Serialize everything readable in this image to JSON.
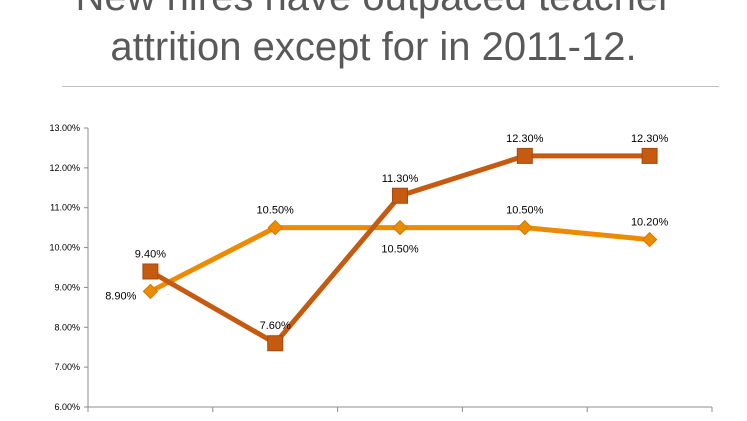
{
  "slide": {
    "title_line1": "New hires have outpaced teacher",
    "title_line2": "attrition except for in 2011-12."
  },
  "chart_data": {
    "type": "line",
    "title": "",
    "xlabel": "",
    "ylabel": "",
    "ylim": [
      6.0,
      13.0
    ],
    "y_ticks": [
      "6.00%",
      "7.00%",
      "8.00%",
      "9.00%",
      "10.00%",
      "11.00%",
      "12.00%",
      "13.00%"
    ],
    "categories": [
      "",
      "",
      "",
      "",
      ""
    ],
    "grid": false,
    "legend": "none",
    "series": [
      {
        "color": "#c55a11",
        "marker": "square",
        "values": [
          9.4,
          7.6,
          11.3,
          12.3,
          12.3
        ],
        "labels": [
          "9.40%",
          "7.60%",
          "11.30%",
          "12.30%",
          "12.30%"
        ],
        "label_position": [
          "above",
          "above",
          "above",
          "above",
          "above"
        ]
      },
      {
        "color": "#ed8b00",
        "marker": "diamond",
        "values": [
          8.9,
          10.5,
          10.5,
          10.5,
          10.2
        ],
        "labels": [
          "8.90%",
          "10.50%",
          "10.50%",
          "10.50%",
          "10.20%"
        ],
        "label_position": [
          "left",
          "above",
          "below",
          "above",
          "above"
        ]
      }
    ]
  }
}
